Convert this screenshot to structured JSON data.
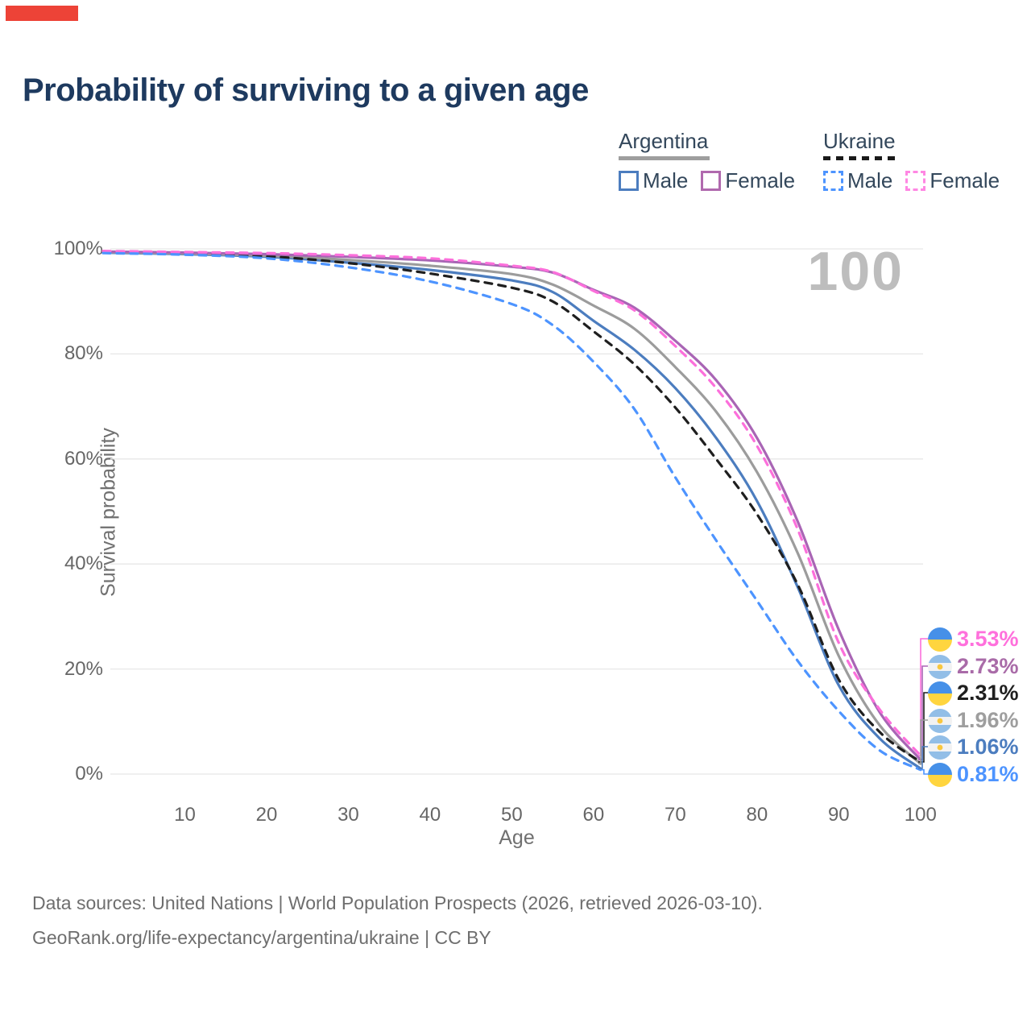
{
  "title": "Probability of surviving to a given age",
  "watermark_age": "100",
  "legend": {
    "groups": [
      {
        "name": "Argentina",
        "underline_style": "solid",
        "underline_color": "#9e9e9e",
        "underline_width": 113,
        "items": [
          {
            "label": "Male",
            "swatch_color": "#4c7dbf",
            "swatch_style": "solid"
          },
          {
            "label": "Female",
            "swatch_color": "#b069ae",
            "swatch_style": "solid"
          }
        ]
      },
      {
        "name": "Ukraine",
        "underline_style": "dashed",
        "underline_color": "#1a1a1a",
        "underline_width": 90,
        "items": [
          {
            "label": "Male",
            "swatch_color": "#4d94ff",
            "swatch_style": "dashed"
          },
          {
            "label": "Female",
            "swatch_color": "#ff87e3",
            "swatch_style": "dashed"
          }
        ]
      }
    ]
  },
  "chart_data": {
    "type": "line",
    "title": "Probability of surviving to a given age",
    "xlabel": "Age",
    "ylabel": "Survival probability",
    "xlim": [
      0,
      100
    ],
    "ylim": [
      0,
      100
    ],
    "grid": true,
    "x_ticks": [
      10,
      20,
      30,
      40,
      50,
      60,
      70,
      80,
      90,
      100
    ],
    "y_ticks": [
      100,
      80,
      60,
      40,
      20,
      0
    ],
    "y_tick_labels": [
      "100%",
      "80%",
      "60%",
      "40%",
      "20%",
      "0%"
    ],
    "x": [
      0,
      10,
      20,
      30,
      40,
      50,
      55,
      60,
      65,
      70,
      75,
      80,
      85,
      90,
      95,
      100
    ],
    "series": [
      {
        "name": "Ukraine Female",
        "country": "Ukraine",
        "sex": "Female",
        "line_color": "#fc6fdb",
        "line_style": "dashed",
        "flag": "ukraine",
        "end_label": "3.53%",
        "end_label_color": "#ff70dc",
        "values": [
          99.6,
          99.4,
          99.2,
          98.8,
          98.2,
          96.8,
          95.6,
          92.0,
          88.3,
          81.5,
          73.5,
          62.5,
          46.5,
          25.0,
          12.3,
          3.53
        ]
      },
      {
        "name": "Argentina Female",
        "country": "Argentina",
        "sex": "Female",
        "line_color": "#a965b5",
        "line_style": "solid",
        "flag": "argentina",
        "end_label": "2.73%",
        "end_label_color": "#a96ba8",
        "values": [
          99.5,
          99.3,
          99.0,
          98.5,
          97.8,
          96.6,
          95.5,
          92.2,
          88.8,
          82.5,
          75.0,
          64.0,
          48.0,
          27.5,
          11.8,
          2.73
        ]
      },
      {
        "name": "Ukraine Both sexes",
        "country": "Ukraine",
        "sex": "Both",
        "line_color": "#1f1f1f",
        "line_style": "dashed",
        "flag": "ukraine",
        "end_label": "2.31%",
        "end_label_color": "#1f1f1f",
        "values": [
          99.3,
          99.1,
          98.6,
          97.3,
          95.3,
          92.6,
          90.0,
          84.3,
          78.0,
          69.8,
          60.0,
          49.5,
          36.0,
          18.0,
          8.0,
          2.31
        ]
      },
      {
        "name": "Argentina Both sexes",
        "country": "Argentina",
        "sex": "Both",
        "line_color": "#9c9c9c",
        "line_style": "solid",
        "flag": "argentina",
        "end_label": "1.96%",
        "end_label_color": "#9e9e9e",
        "values": [
          99.4,
          99.1,
          98.7,
          97.9,
          96.8,
          95.2,
          93.2,
          89.2,
          84.8,
          77.5,
          69.0,
          57.5,
          42.0,
          22.5,
          9.3,
          1.96
        ]
      },
      {
        "name": "Argentina Male",
        "country": "Argentina",
        "sex": "Male",
        "line_color": "#4c7dbf",
        "line_style": "solid",
        "flag": "argentina",
        "end_label": "1.06%",
        "end_label_color": "#4c7dbf",
        "values": [
          99.3,
          99.0,
          98.5,
          97.4,
          96.0,
          94.0,
          91.8,
          86.3,
          80.8,
          73.5,
          64.0,
          52.0,
          35.5,
          16.9,
          6.8,
          1.06
        ]
      },
      {
        "name": "Ukraine Male",
        "country": "Ukraine",
        "sex": "Male",
        "line_color": "#4d94ff",
        "line_style": "dashed",
        "flag": "ukraine",
        "end_label": "0.81%",
        "end_label_color": "#4d94ff",
        "values": [
          99.2,
          98.9,
          98.2,
          96.5,
          93.8,
          89.5,
          85.5,
          78.5,
          69.5,
          56.5,
          44.5,
          33.0,
          21.5,
          12.0,
          4.5,
          0.81
        ]
      }
    ],
    "legend_position": "top-right"
  },
  "footer": {
    "line1": "Data sources: United Nations | World Population Prospects (2026, retrieved 2026-03-10).",
    "line2": "GeoRank.org/life-expectancy/argentina/ukraine | CC BY"
  },
  "colors": {
    "title_text": "#1e3a5f",
    "legend_text": "#33475b",
    "axis_text": "#666666",
    "axis_title_text": "#707070",
    "gridline": "#e7e7e7",
    "watermark": "#bdbdbd",
    "footer_text": "#6e6e6e",
    "marker_red": "#ed4337",
    "flag_ukraine_blue": "#4690e8",
    "flag_ukraine_yellow": "#ffd53f",
    "flag_argentina_blue": "#92bee7",
    "flag_argentina_white": "#f2f2f2",
    "flag_argentina_sun": "#f8c73e"
  }
}
